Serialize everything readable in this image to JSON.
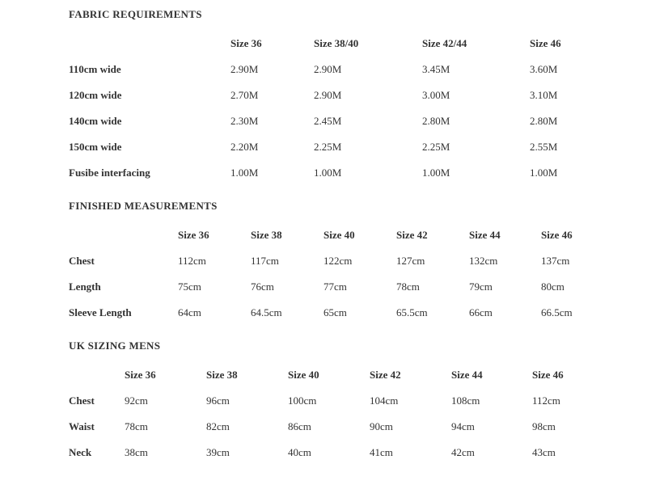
{
  "text_color": "#333333",
  "sections": [
    {
      "title": "FABRIC REQUIREMENTS",
      "columns": [
        "Size 36",
        "Size 38/40",
        "Size 42/44",
        "Size 46"
      ],
      "rows": [
        {
          "label": "110cm wide",
          "values": [
            "2.90M",
            "2.90M",
            "3.45M",
            "3.60M"
          ]
        },
        {
          "label": "120cm wide",
          "values": [
            "2.70M",
            "2.90M",
            "3.00M",
            "3.10M"
          ]
        },
        {
          "label": "140cm wide",
          "values": [
            "2.30M",
            "2.45M",
            "2.80M",
            "2.80M"
          ]
        },
        {
          "label": "150cm wide",
          "values": [
            "2.20M",
            "2.25M",
            "2.25M",
            "2.55M"
          ]
        },
        {
          "label": "Fusibe interfacing",
          "values": [
            "1.00M",
            "1.00M",
            "1.00M",
            "1.00M"
          ]
        }
      ]
    },
    {
      "title": "FINISHED MEASUREMENTS",
      "columns": [
        "Size 36",
        "Size 38",
        "Size 40",
        "Size 42",
        "Size 44",
        "Size 46"
      ],
      "rows": [
        {
          "label": "Chest",
          "values": [
            "112cm",
            "117cm",
            "122cm",
            "127cm",
            "132cm",
            "137cm"
          ]
        },
        {
          "label": "Length",
          "values": [
            "75cm",
            "76cm",
            "77cm",
            "78cm",
            "79cm",
            "80cm"
          ]
        },
        {
          "label": "Sleeve Length",
          "values": [
            "64cm",
            "64.5cm",
            "65cm",
            "65.5cm",
            "66cm",
            "66.5cm"
          ]
        }
      ]
    },
    {
      "title": "UK SIZING MENS",
      "columns": [
        "Size 36",
        "Size 38",
        "Size 40",
        "Size 42",
        "Size 44",
        "Size 46"
      ],
      "rows": [
        {
          "label": "Chest",
          "values": [
            "92cm",
            "96cm",
            "100cm",
            "104cm",
            "108cm",
            "112cm"
          ]
        },
        {
          "label": "Waist",
          "values": [
            "78cm",
            "82cm",
            "86cm",
            "90cm",
            "94cm",
            "98cm"
          ]
        },
        {
          "label": "Neck",
          "values": [
            "38cm",
            "39cm",
            "40cm",
            "41cm",
            "42cm",
            "43cm"
          ]
        }
      ]
    }
  ]
}
